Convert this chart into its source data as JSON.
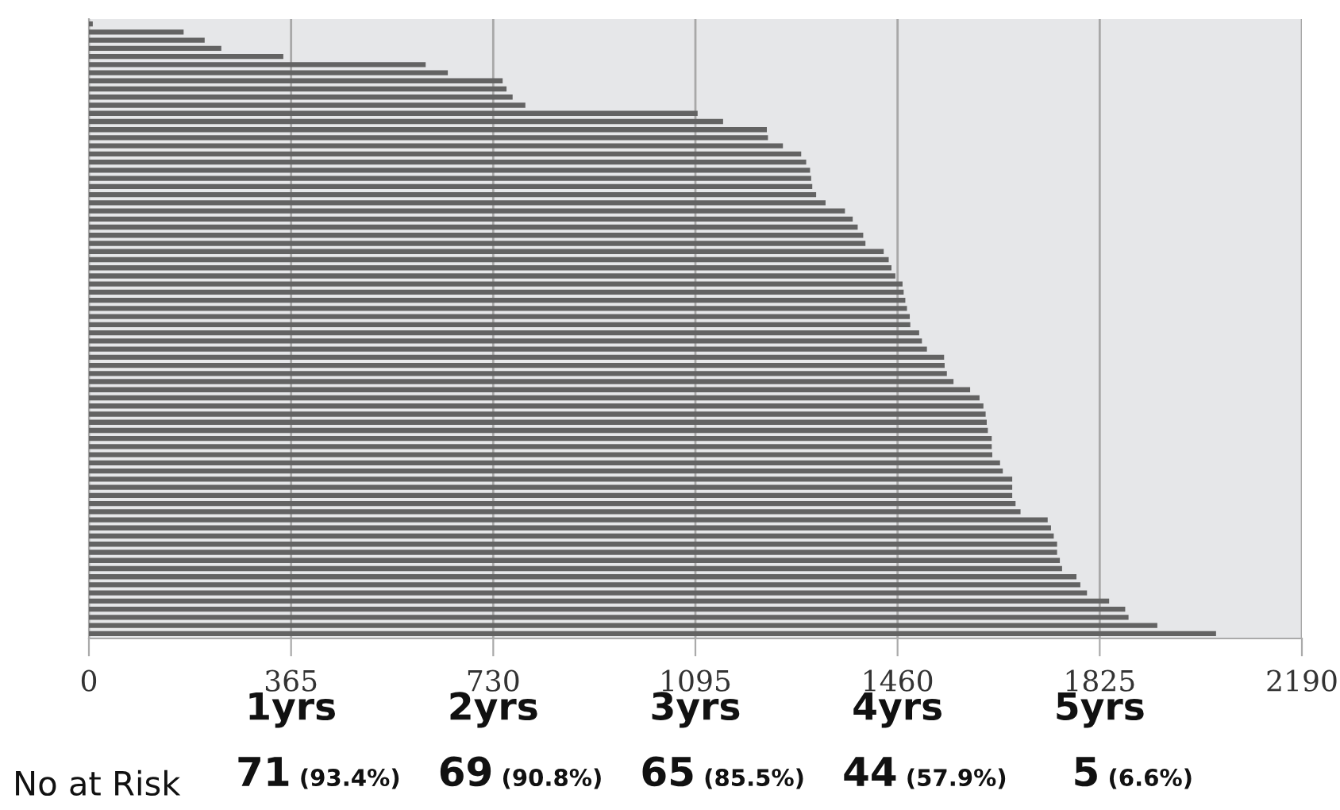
{
  "chart_data": {
    "type": "bar",
    "orientation": "horizontal",
    "categories": [
      null,
      null,
      null,
      null,
      null,
      null,
      null,
      null,
      null,
      null,
      null,
      null,
      null,
      null,
      null,
      null,
      null,
      null,
      null,
      null,
      null,
      null,
      null,
      null,
      null,
      null,
      null,
      null,
      null,
      null,
      null,
      null,
      null,
      null,
      null,
      null,
      null,
      null,
      null,
      null,
      null,
      null,
      null,
      null,
      null,
      null,
      null,
      null,
      null,
      null,
      null,
      null,
      null,
      null,
      null,
      null,
      null,
      null,
      null,
      null,
      null,
      null,
      null,
      null,
      null,
      null,
      null,
      null,
      null,
      null,
      null,
      null,
      null,
      null,
      null,
      null
    ],
    "values": [
      7,
      171,
      209,
      239,
      351,
      608,
      648,
      747,
      754,
      765,
      788,
      1099,
      1145,
      1224,
      1226,
      1253,
      1286,
      1295,
      1302,
      1304,
      1306,
      1313,
      1330,
      1365,
      1379,
      1388,
      1398,
      1402,
      1435,
      1444,
      1449,
      1456,
      1469,
      1471,
      1474,
      1477,
      1482,
      1483,
      1499,
      1504,
      1513,
      1544,
      1545,
      1549,
      1561,
      1591,
      1608,
      1615,
      1619,
      1621,
      1623,
      1630,
      1630,
      1631,
      1645,
      1650,
      1667,
      1667,
      1667,
      1673,
      1682,
      1731,
      1737,
      1742,
      1748,
      1748,
      1753,
      1757,
      1783,
      1790,
      1802,
      1842,
      1871,
      1877,
      1929,
      2035
    ],
    "color": "#636363",
    "xlim": [
      0,
      2190
    ],
    "xticks": [
      0,
      365,
      730,
      1095,
      1460,
      1825,
      2190
    ],
    "grid": "x",
    "legend": false,
    "annotations": [
      "1yrs",
      "2yrs",
      "3yrs",
      "4yrs",
      "5yrs",
      "No at Risk",
      "71 (93.4%)",
      "69 (90.8%)",
      "65 (85.5%)",
      "44 (57.9%)",
      "5 (6.6%)"
    ]
  }
}
